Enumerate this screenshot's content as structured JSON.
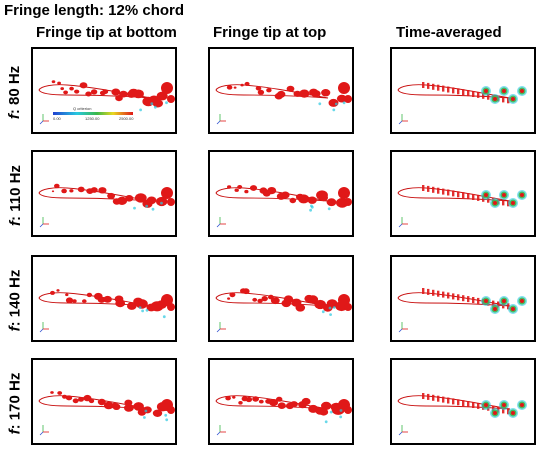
{
  "title": "Fringe length: 12% chord",
  "columns": [
    {
      "label": "Fringe tip at bottom"
    },
    {
      "label": "Fringe tip at top"
    },
    {
      "label": "Time-averaged"
    }
  ],
  "rows": [
    {
      "prefix": "f",
      "label": ": 80 Hz"
    },
    {
      "prefix": "f",
      "label": ": 110 Hz"
    },
    {
      "prefix": "f",
      "label": ": 140 Hz"
    },
    {
      "prefix": "f",
      "label": ": 170 Hz"
    }
  ],
  "colorbar": {
    "title": "Q criterion",
    "min": "0.00",
    "mid": "1250.00",
    "max": "2500.00"
  },
  "colors": {
    "vortex": "#e01818",
    "airfoil": "#c81010",
    "cyan": "#28c8e0",
    "green": "#3ab848",
    "yellow": "#e8d820",
    "border": "#000000"
  }
}
